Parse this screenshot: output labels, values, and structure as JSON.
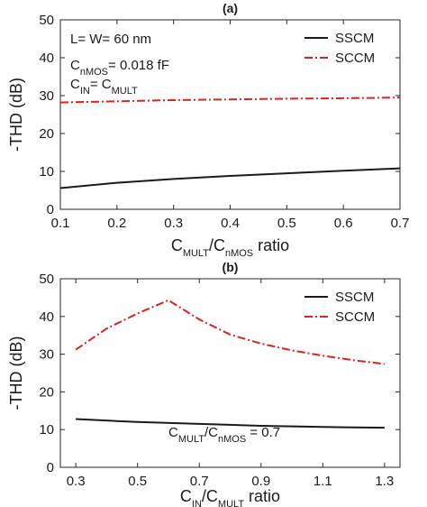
{
  "chart_data": [
    {
      "type": "line",
      "title": "(a)",
      "xlabel": {
        "main": "C",
        "sub1": "MULT",
        "mid": "/C",
        "sub2": "nMOS",
        "tail": " ratio"
      },
      "ylabel": "-THD (dB)",
      "xlim": [
        0.1,
        0.7
      ],
      "ylim": [
        0,
        50
      ],
      "xticks": [
        0.1,
        0.2,
        0.3,
        0.4,
        0.5,
        0.6,
        0.7
      ],
      "xtick_labels": [
        "0.1",
        "0.2",
        "0.3",
        "0.4",
        "0.5",
        "0.6",
        "0.7"
      ],
      "yticks": [
        0,
        10,
        20,
        30,
        40,
        50
      ],
      "ytick_labels": [
        "0",
        "10",
        "20",
        "30",
        "40",
        "50"
      ],
      "legend_position": "top-right",
      "series": [
        {
          "name": "SSCM",
          "color": "#1a1a1a",
          "dash": "solid",
          "x": [
            0.1,
            0.2,
            0.3,
            0.4,
            0.5,
            0.6,
            0.7
          ],
          "y": [
            5.6,
            7.0,
            8.0,
            8.8,
            9.5,
            10.2,
            10.8
          ]
        },
        {
          "name": "SCCM",
          "color": "#e0201b",
          "dash": "dashdot",
          "x": [
            0.1,
            0.2,
            0.3,
            0.4,
            0.5,
            0.6,
            0.7
          ],
          "y": [
            28.2,
            28.5,
            28.8,
            29.0,
            29.2,
            29.3,
            29.5
          ]
        }
      ],
      "annotations": [
        {
          "parts": [
            {
              "t": "L= W= 60 nm"
            }
          ]
        },
        {
          "parts": [
            {
              "t": "C"
            },
            {
              "t": "nMOS",
              "sub": true
            },
            {
              "t": "= 0.018 fF"
            }
          ]
        },
        {
          "parts": [
            {
              "t": "C"
            },
            {
              "t": "IN",
              "sub": true
            },
            {
              "t": "= C"
            },
            {
              "t": "MULT",
              "sub": true
            }
          ]
        }
      ]
    },
    {
      "type": "line",
      "title": "(b)",
      "xlabel": {
        "main": "C",
        "sub1": "IN",
        "mid": "/C",
        "sub2": "MULT",
        "tail": " ratio"
      },
      "ylabel": "-THD (dB)",
      "xlim": [
        0.25,
        1.35
      ],
      "ylim": [
        0,
        50
      ],
      "xticks": [
        0.3,
        0.5,
        0.7,
        0.9,
        1.1,
        1.3
      ],
      "xtick_labels": [
        "0.3",
        "0.5",
        "0.7",
        "0.9",
        "1.1",
        "1.3"
      ],
      "yticks": [
        0,
        10,
        20,
        30,
        40,
        50
      ],
      "ytick_labels": [
        "0",
        "10",
        "20",
        "30",
        "40",
        "50"
      ],
      "legend_position": "top-right",
      "series": [
        {
          "name": "SSCM",
          "color": "#1a1a1a",
          "dash": "solid",
          "x": [
            0.3,
            0.5,
            0.7,
            0.9,
            1.1,
            1.3
          ],
          "y": [
            12.8,
            12.0,
            11.5,
            11.0,
            10.7,
            10.5
          ]
        },
        {
          "name": "SCCM",
          "color": "#e0201b",
          "dash": "dashdot",
          "x": [
            0.3,
            0.4,
            0.5,
            0.6,
            0.7,
            0.8,
            0.9,
            1.0,
            1.1,
            1.2,
            1.3
          ],
          "y": [
            31.2,
            36.8,
            40.8,
            44.3,
            39.2,
            35.2,
            32.8,
            31.0,
            29.6,
            28.4,
            27.4
          ]
        }
      ],
      "annotations": [
        {
          "parts": [
            {
              "t": "C"
            },
            {
              "t": "MULT",
              "sub": true
            },
            {
              "t": "/C"
            },
            {
              "t": "nMOS",
              "sub": true
            },
            {
              "t": " = 0.7"
            }
          ]
        }
      ]
    }
  ]
}
